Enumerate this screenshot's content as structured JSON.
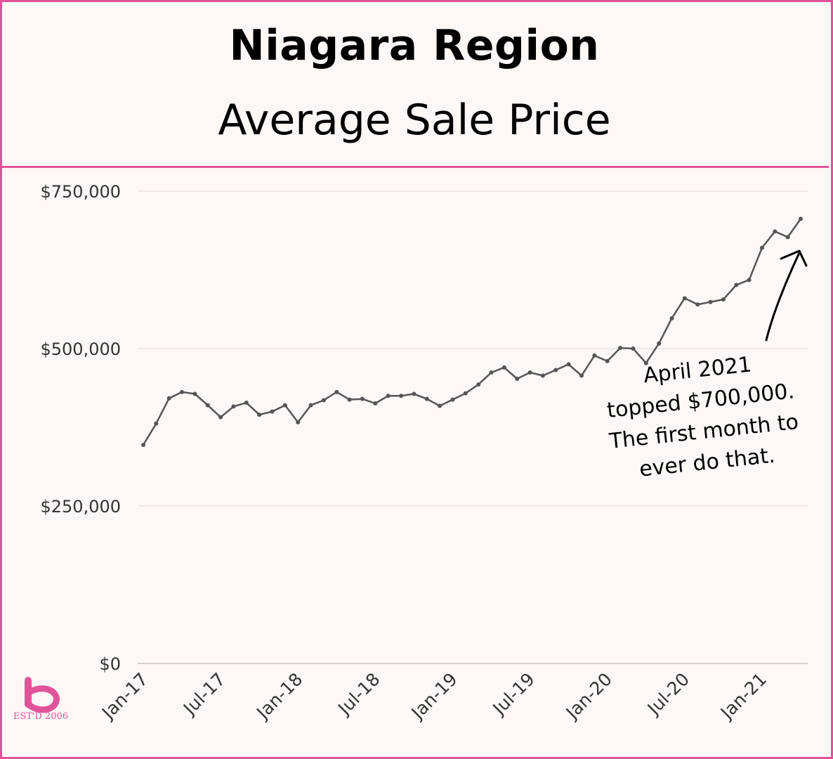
{
  "header": {
    "title": "Niagara Region",
    "subtitle": "Average Sale Price"
  },
  "annotation": {
    "lines": [
      "April 2021",
      "topped $700,000.",
      "The first month to",
      "ever do that."
    ]
  },
  "logo": {
    "est_text": "EST'D 2006"
  },
  "colors": {
    "accent": "#e0559a",
    "line": "#555555",
    "grid": "#dddddd",
    "background": "#fdf7f6"
  },
  "chart_data": {
    "type": "line",
    "title": "Average Sale Price",
    "ylim": [
      0,
      750000
    ],
    "yticks": [
      0,
      250000,
      500000,
      750000
    ],
    "ytick_labels": [
      "$0",
      "$250,000",
      "$500,000",
      "$750,000"
    ],
    "xtick_labels": [
      "Jan-17",
      "Jul-17",
      "Jan-18",
      "Jul-18",
      "Jan-19",
      "Jul-19",
      "Jan-20",
      "Jul-20",
      "Jan-21"
    ],
    "xtick_index": [
      0,
      6,
      12,
      18,
      24,
      30,
      36,
      42,
      48
    ],
    "grid": true,
    "x": [
      "Jan-17",
      "Feb-17",
      "Mar-17",
      "Apr-17",
      "May-17",
      "Jun-17",
      "Jul-17",
      "Aug-17",
      "Sep-17",
      "Oct-17",
      "Nov-17",
      "Dec-17",
      "Jan-18",
      "Feb-18",
      "Mar-18",
      "Apr-18",
      "May-18",
      "Jun-18",
      "Jul-18",
      "Aug-18",
      "Sep-18",
      "Oct-18",
      "Nov-18",
      "Dec-18",
      "Jan-19",
      "Feb-19",
      "Mar-19",
      "Apr-19",
      "May-19",
      "Jun-19",
      "Jul-19",
      "Aug-19",
      "Sep-19",
      "Oct-19",
      "Nov-19",
      "Dec-19",
      "Jan-20",
      "Feb-20",
      "Mar-20",
      "Apr-20",
      "May-20",
      "Jun-20",
      "Jul-20",
      "Aug-20",
      "Sep-20",
      "Oct-20",
      "Nov-20",
      "Dec-20",
      "Jan-21",
      "Feb-21",
      "Mar-21",
      "Apr-21"
    ],
    "series": [
      {
        "values": [
          347000,
          381000,
          421000,
          431000,
          428000,
          410000,
          391000,
          408000,
          414000,
          395000,
          400000,
          410000,
          383000,
          410000,
          418000,
          431000,
          419000,
          420000,
          413000,
          425000,
          425000,
          428000,
          420000,
          409000,
          419000,
          429000,
          443000,
          462000,
          470000,
          452000,
          462000,
          457000,
          466000,
          475000,
          457000,
          489000,
          480000,
          501000,
          500000,
          477000,
          508000,
          548000,
          580000,
          570000,
          574000,
          578000,
          601000,
          609000,
          660000,
          686000,
          677000,
          706000
        ]
      }
    ]
  }
}
